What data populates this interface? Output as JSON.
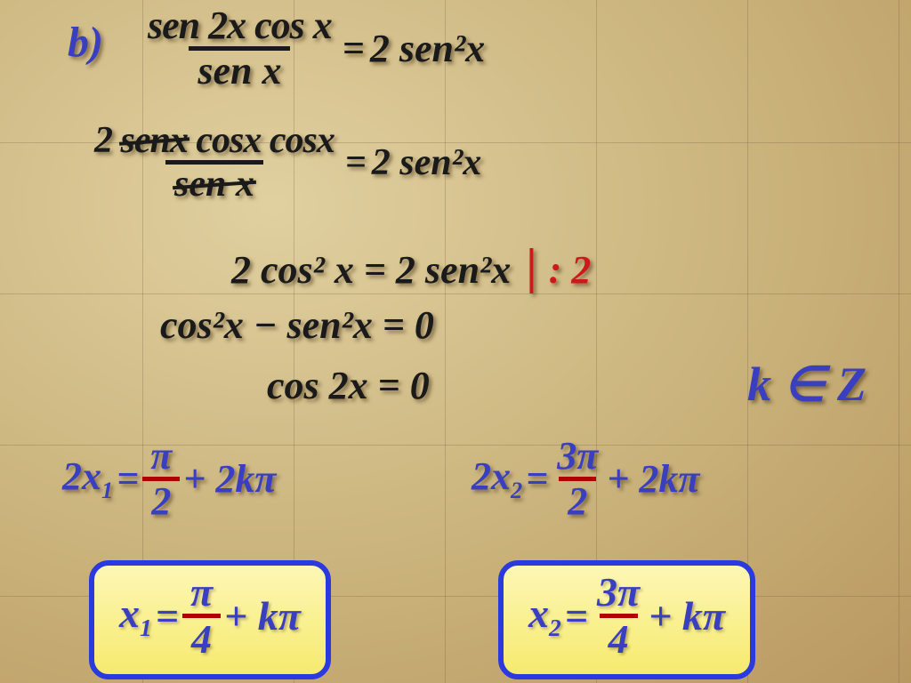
{
  "colors": {
    "text_dark": "#1a1a1a",
    "text_blue": "#3a3fbf",
    "text_red": "#cc1a1a",
    "bar_red": "#b00000",
    "box_border": "#2a3adf",
    "box_fill_top": "#fdf7b5",
    "box_fill_bottom": "#f6ea6e",
    "background_base": "#d4c28e"
  },
  "label": "b)",
  "line1": {
    "numerator": "sen 2x cos x",
    "denominator": "sen x",
    "equals": "=",
    "rhs": "2 sen²x"
  },
  "line2": {
    "num_prefix": "2 ",
    "num_strike1": "senx",
    "num_mid": " cosx cosx",
    "den_strike": "sen x",
    "equals": "=",
    "rhs": "2 sen²x"
  },
  "line3": {
    "lhs": "2 cos² x = 2 sen²x",
    "divider": "|",
    "op": ": 2"
  },
  "line4": "cos²x − sen²x = 0",
  "line5": "cos 2x = 0",
  "kz": "k ∈ Z",
  "sol1": {
    "lhs_pre": "2x",
    "lhs_sub": "1",
    "eq": " = ",
    "frac_num": "π",
    "frac_den": "2",
    "tail": " + 2kπ"
  },
  "sol2": {
    "lhs_pre": "2x",
    "lhs_sub": "2",
    "eq": " = ",
    "frac_num": "3π",
    "frac_den": "2",
    "tail": "+ 2kπ"
  },
  "ans1": {
    "lhs_pre": "x",
    "lhs_sub": "1",
    "eq": " = ",
    "frac_num": "π",
    "frac_den": "4",
    "tail": " + kπ"
  },
  "ans2": {
    "lhs_pre": "x",
    "lhs_sub": "2",
    "eq": " = ",
    "frac_num": "3π",
    "frac_den": "4",
    "tail": " + kπ"
  }
}
